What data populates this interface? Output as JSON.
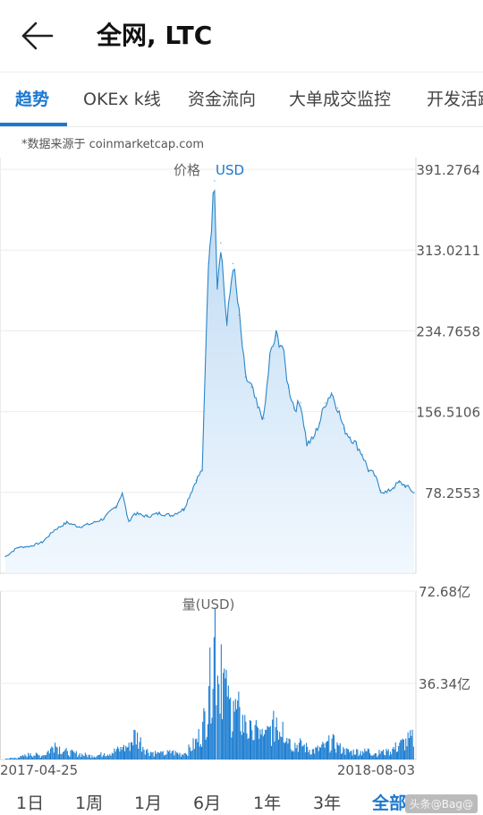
{
  "header": {
    "title": "全网, LTC"
  },
  "tabs": [
    {
      "label": "趋势",
      "active": true
    },
    {
      "label": "OKEx k线"
    },
    {
      "label": "资金流向"
    },
    {
      "label": "大单成交监控"
    },
    {
      "label": "开发活跃度"
    }
  ],
  "source_note": "*数据来源于 coinmarketcap.com",
  "ranges": [
    {
      "label": "1日"
    },
    {
      "label": "1周"
    },
    {
      "label": "1月"
    },
    {
      "label": "6月"
    },
    {
      "label": "1年"
    },
    {
      "label": "3年"
    },
    {
      "label": "全部",
      "active": true
    }
  ],
  "watermark": "头条@Bag@",
  "colors": {
    "accent": "#1a78d0",
    "line": "#2a86c8",
    "volume": "#1f7fd2",
    "fill_top": "#b9d8f3",
    "fill_bottom": "#f0f7fe"
  },
  "chart_data": [
    {
      "type": "area",
      "title": "价格",
      "unit": "USD",
      "ylim": [
        0,
        391.2764
      ],
      "y_ticks": [
        "391.2764",
        "313.0211",
        "234.7658",
        "156.5106",
        "78.2553"
      ],
      "x_ticks": [
        "2017-04-25",
        "2018-08-03"
      ],
      "x": [
        "2017-04-25",
        "2017-05-09",
        "2017-05-23",
        "2017-06-06",
        "2017-06-20",
        "2017-07-04",
        "2017-07-18",
        "2017-08-01",
        "2017-08-15",
        "2017-08-29",
        "2017-09-05",
        "2017-09-12",
        "2017-09-19",
        "2017-10-03",
        "2017-10-17",
        "2017-10-31",
        "2017-11-14",
        "2017-11-28",
        "2017-12-05",
        "2017-12-12",
        "2017-12-19",
        "2017-12-22",
        "2017-12-26",
        "2018-01-02",
        "2018-01-09",
        "2018-01-16",
        "2018-01-23",
        "2018-01-30",
        "2018-02-06",
        "2018-02-13",
        "2018-02-20",
        "2018-02-27",
        "2018-03-06",
        "2018-03-13",
        "2018-03-20",
        "2018-03-27",
        "2018-04-03",
        "2018-04-10",
        "2018-04-17",
        "2018-04-24",
        "2018-05-01",
        "2018-05-08",
        "2018-05-15",
        "2018-05-22",
        "2018-05-29",
        "2018-06-05",
        "2018-06-12",
        "2018-06-19",
        "2018-06-26",
        "2018-07-03",
        "2018-07-10",
        "2018-07-17",
        "2018-07-24",
        "2018-08-03"
      ],
      "series": [
        {
          "values": [
            16,
            25,
            26,
            30,
            42,
            49,
            45,
            48,
            53,
            65,
            78,
            50,
            58,
            55,
            58,
            56,
            62,
            90,
            100,
            300,
            380,
            280,
            320,
            240,
            300,
            250,
            190,
            180,
            160,
            150,
            210,
            230,
            220,
            180,
            160,
            165,
            125,
            130,
            145,
            165,
            175,
            160,
            140,
            132,
            125,
            115,
            100,
            95,
            80,
            78,
            83,
            88,
            85,
            78
          ]
        }
      ]
    },
    {
      "type": "bar",
      "title": "量(USD)",
      "ylim": [
        0,
        72.68
      ],
      "y_unit": "亿",
      "y_ticks": [
        "72.68亿",
        "36.34亿"
      ],
      "x_ticks": [
        "2017-04-25",
        "2018-08-03"
      ],
      "x": [
        "2017-04-25",
        "2017-05-09",
        "2017-05-23",
        "2017-06-06",
        "2017-06-20",
        "2017-07-04",
        "2017-07-18",
        "2017-08-01",
        "2017-08-15",
        "2017-08-29",
        "2017-09-05",
        "2017-09-12",
        "2017-09-19",
        "2017-10-03",
        "2017-10-17",
        "2017-10-31",
        "2017-11-14",
        "2017-11-28",
        "2017-12-05",
        "2017-12-12",
        "2017-12-19",
        "2017-12-22",
        "2017-12-26",
        "2018-01-02",
        "2018-01-09",
        "2018-01-16",
        "2018-01-23",
        "2018-01-30",
        "2018-02-06",
        "2018-02-13",
        "2018-02-20",
        "2018-02-27",
        "2018-03-06",
        "2018-03-13",
        "2018-03-20",
        "2018-03-27",
        "2018-04-03",
        "2018-04-10",
        "2018-04-17",
        "2018-04-24",
        "2018-05-01",
        "2018-05-08",
        "2018-05-15",
        "2018-05-22",
        "2018-05-29",
        "2018-06-05",
        "2018-06-12",
        "2018-06-19",
        "2018-06-26",
        "2018-07-03",
        "2018-07-10",
        "2018-07-17",
        "2018-07-24",
        "2018-08-03"
      ],
      "values": [
        0.5,
        1,
        3,
        2,
        8,
        4,
        3,
        2,
        3,
        5,
        6,
        8,
        14,
        5,
        3,
        4,
        3,
        10,
        18,
        35,
        72,
        40,
        55,
        30,
        28,
        25,
        18,
        14,
        15,
        12,
        16,
        20,
        18,
        10,
        8,
        9,
        6,
        5,
        6,
        8,
        10,
        7,
        5,
        4,
        5,
        4,
        5,
        3,
        4,
        4,
        6,
        8,
        10,
        12
      ]
    }
  ]
}
